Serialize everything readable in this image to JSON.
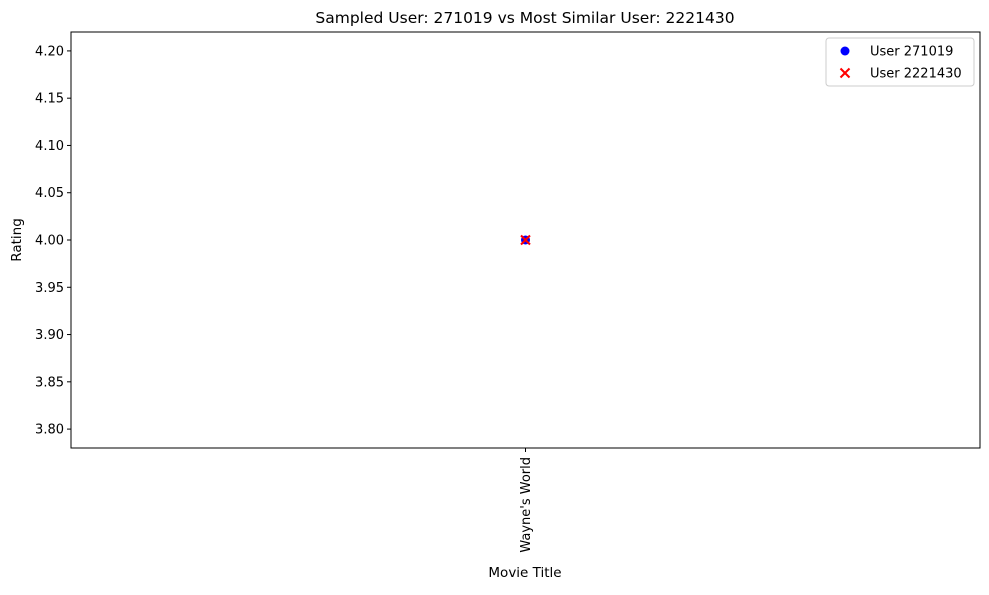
{
  "chart_data": {
    "type": "scatter",
    "title": "Sampled User: 271019 vs Most Similar User: 2221430",
    "xlabel": "Movie Title",
    "ylabel": "Rating",
    "categories": [
      "Wayne's World"
    ],
    "ylim": [
      3.78,
      4.22
    ],
    "yticks": [
      "3.80",
      "3.85",
      "3.90",
      "3.95",
      "4.00",
      "4.05",
      "4.10",
      "4.15",
      "4.20"
    ],
    "grid": false,
    "legend_position": "top-right",
    "series": [
      {
        "name": "User 271019",
        "marker": "circle",
        "color": "#0000ff",
        "points": [
          {
            "x": "Wayne's World",
            "y": 4.0
          }
        ]
      },
      {
        "name": "User 2221430",
        "marker": "x",
        "color": "#ff0000",
        "points": [
          {
            "x": "Wayne's World",
            "y": 4.0
          }
        ]
      }
    ]
  }
}
